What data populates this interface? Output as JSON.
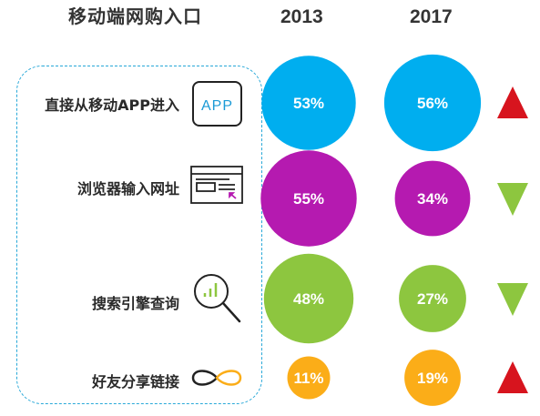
{
  "header": {
    "title": "移动端网购入口"
  },
  "colors": {
    "blue": "#00aeef",
    "purple": "#b51ab0",
    "green": "#8dc63f",
    "orange": "#fbad18",
    "red": "#d7141e",
    "text": "#333333"
  },
  "chart_data": {
    "type": "bubble",
    "columns": [
      "2013",
      "2017"
    ],
    "rows": [
      {
        "label": "直接从移动APP进入",
        "icon": "app-icon",
        "icon_text": "APP",
        "values": [
          53,
          56
        ],
        "value_labels": [
          "53%",
          "56%"
        ],
        "color": "#00aeef",
        "trend": "up"
      },
      {
        "label": "浏览器输入网址",
        "icon": "browser-window-icon",
        "values": [
          55,
          34
        ],
        "value_labels": [
          "55%",
          "34%"
        ],
        "color": "#b51ab0",
        "trend": "down"
      },
      {
        "label": "搜索引擎查询",
        "icon": "search-magnifier-icon",
        "values": [
          48,
          27
        ],
        "value_labels": [
          "48%",
          "27%"
        ],
        "color": "#8dc63f",
        "trend": "down"
      },
      {
        "label": "好友分享链接",
        "icon": "infinity-link-icon",
        "values": [
          11,
          19
        ],
        "value_labels": [
          "11%",
          "19%"
        ],
        "color": "#fbad18",
        "trend": "up"
      }
    ]
  }
}
